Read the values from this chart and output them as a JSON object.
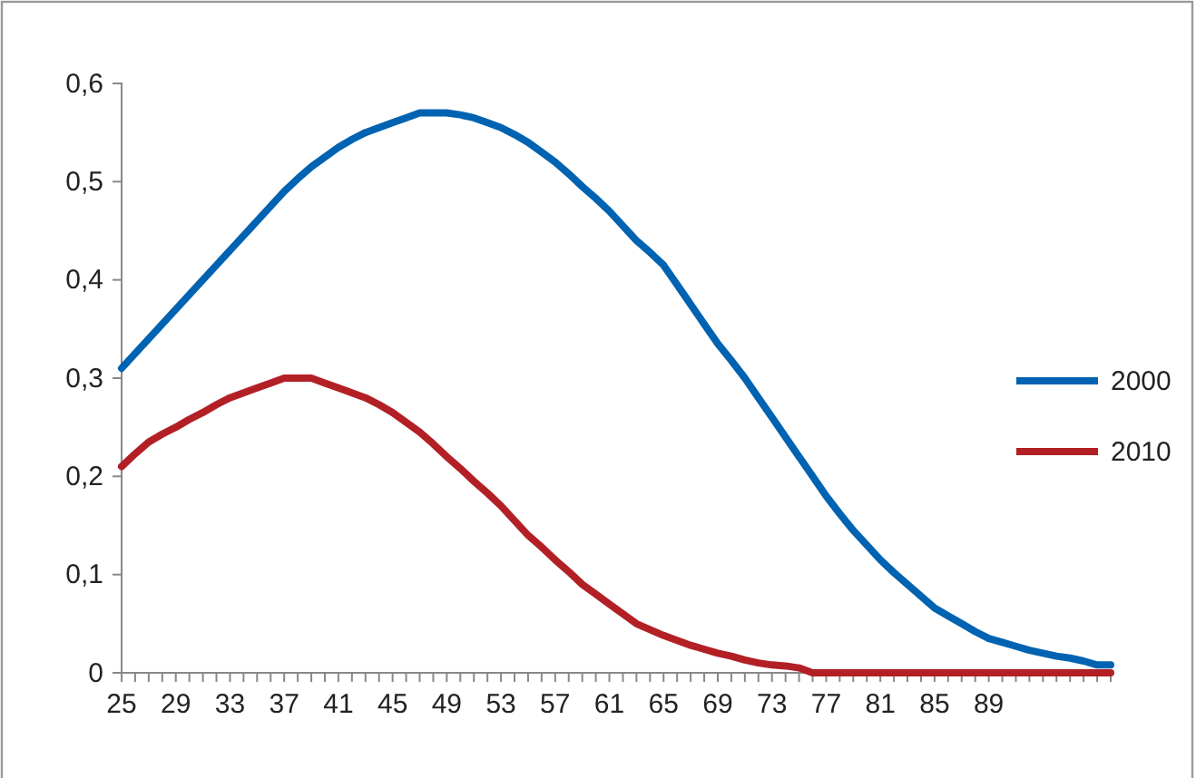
{
  "chart_data": {
    "type": "line",
    "categories": [
      "25",
      null,
      null,
      null,
      "29",
      null,
      null,
      null,
      "33",
      null,
      null,
      null,
      "37",
      null,
      null,
      null,
      "41",
      null,
      null,
      null,
      "45",
      null,
      null,
      null,
      "49",
      null,
      null,
      null,
      "53",
      null,
      null,
      null,
      "57",
      null,
      null,
      null,
      "61",
      null,
      null,
      null,
      "65",
      null,
      null,
      null,
      "69",
      null,
      null,
      null,
      "73",
      null,
      null,
      null,
      "77",
      null,
      null,
      null,
      "81",
      null,
      null,
      null,
      "85",
      null,
      null,
      null,
      "89",
      null,
      null,
      null,
      null,
      null,
      null,
      null,
      null,
      null
    ],
    "series": [
      {
        "name": "2000",
        "color": "#0063b1",
        "values": [
          0.31,
          0.325,
          0.34,
          0.355,
          0.37,
          0.385,
          0.4,
          0.415,
          0.43,
          0.445,
          0.46,
          0.475,
          0.49,
          0.503,
          0.515,
          0.525,
          0.535,
          0.543,
          0.55,
          0.555,
          0.56,
          0.565,
          0.57,
          0.57,
          0.57,
          0.568,
          0.565,
          0.56,
          0.555,
          0.548,
          0.54,
          0.53,
          0.52,
          0.508,
          0.495,
          0.483,
          0.47,
          0.455,
          0.44,
          0.428,
          0.415,
          0.395,
          0.375,
          0.355,
          0.335,
          0.318,
          0.3,
          0.28,
          0.26,
          0.24,
          0.22,
          0.2,
          0.18,
          0.162,
          0.145,
          0.13,
          0.115,
          0.102,
          0.09,
          0.078,
          0.066,
          0.058,
          0.05,
          0.042,
          0.035,
          0.031,
          0.027,
          0.023,
          0.02,
          0.017,
          0.015,
          0.012,
          0.008,
          0.008
        ]
      },
      {
        "name": "2010",
        "color": "#b22026",
        "values": [
          0.21,
          0.223,
          0.235,
          0.243,
          0.25,
          0.258,
          0.265,
          0.273,
          0.28,
          0.285,
          0.29,
          0.295,
          0.3,
          0.3,
          0.3,
          0.295,
          0.29,
          0.285,
          0.28,
          0.273,
          0.265,
          0.255,
          0.245,
          0.233,
          0.22,
          0.208,
          0.195,
          0.183,
          0.17,
          0.155,
          0.14,
          0.128,
          0.115,
          0.103,
          0.09,
          0.08,
          0.07,
          0.06,
          0.05,
          0.044,
          0.038,
          0.033,
          0.028,
          0.024,
          0.02,
          0.017,
          0.013,
          0.01,
          0.008,
          0.007,
          0.005,
          0,
          0,
          0,
          0,
          0,
          0,
          0,
          0,
          0,
          0,
          0,
          0,
          0,
          0,
          0,
          0,
          0,
          0,
          0,
          0,
          0,
          0,
          0
        ]
      }
    ],
    "ylim": [
      0,
      0.6
    ],
    "yticks": [
      {
        "value": 0,
        "label": "0"
      },
      {
        "value": 0.1,
        "label": "0,1"
      },
      {
        "value": 0.2,
        "label": "0,2"
      },
      {
        "value": 0.3,
        "label": "0,3"
      },
      {
        "value": 0.4,
        "label": "0,4"
      },
      {
        "value": 0.5,
        "label": "0,5"
      },
      {
        "value": 0.6,
        "label": "0,6"
      }
    ],
    "legend": "right",
    "grid": false
  }
}
